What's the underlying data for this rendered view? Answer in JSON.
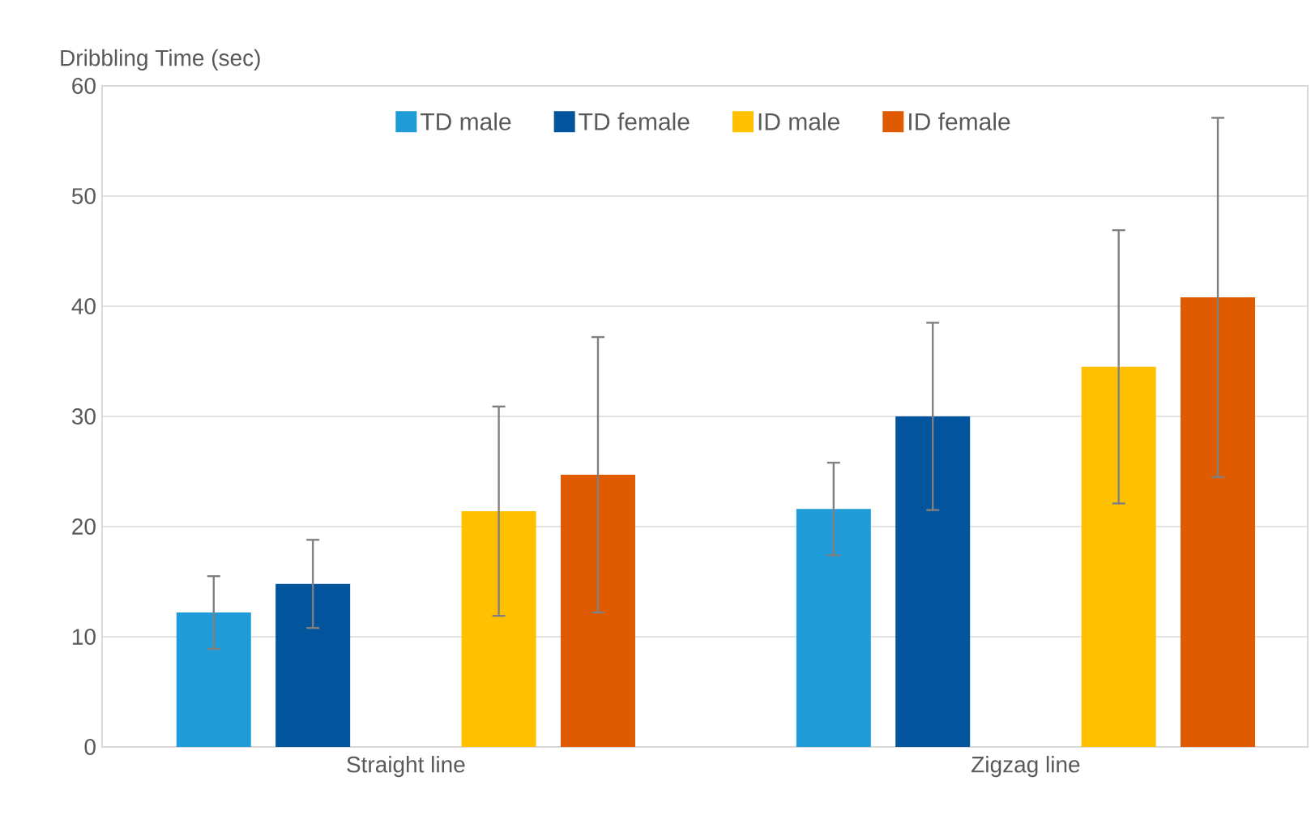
{
  "chart_data": {
    "type": "bar",
    "ylabel": "Dribbling Time (sec)",
    "categories": [
      "Straight line",
      "Zigzag line"
    ],
    "series": [
      {
        "name": "TD male",
        "color": "#1f9bd7",
        "values": [
          12.2,
          21.6
        ],
        "errors": [
          3.3,
          4.2
        ]
      },
      {
        "name": "TD female",
        "color": "#02559c",
        "values": [
          14.8,
          30.0
        ],
        "errors": [
          4.0,
          8.5
        ]
      },
      {
        "name": "ID male",
        "color": "#fec000",
        "values": [
          21.4,
          34.5
        ],
        "errors": [
          9.5,
          12.4
        ]
      },
      {
        "name": "ID female",
        "color": "#e05a00",
        "values": [
          24.7,
          40.8
        ],
        "errors": [
          12.5,
          16.3
        ]
      }
    ],
    "ylim": [
      0,
      60
    ],
    "yticks": [
      0,
      10,
      20,
      30,
      40,
      50,
      60
    ],
    "grid": "y",
    "legend": "top"
  }
}
